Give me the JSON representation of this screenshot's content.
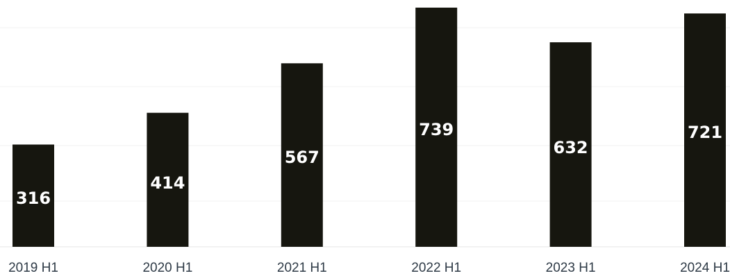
{
  "chart_data": {
    "type": "bar",
    "categories": [
      "2019 H1",
      "2020 H1",
      "2021 H1",
      "2022 H1",
      "2023 H1",
      "2024 H1"
    ],
    "values": [
      316,
      414,
      567,
      739,
      632,
      721
    ],
    "data_labels": [
      "316",
      "414",
      "567",
      "739",
      "632",
      "721"
    ],
    "title": "",
    "xlabel": "",
    "ylabel": "",
    "ylim": [
      0,
      739
    ],
    "grid": true,
    "legend": "none",
    "bar_color": "#16160f",
    "label_color": "#ffffff",
    "tick_color": "#2e3a46"
  }
}
